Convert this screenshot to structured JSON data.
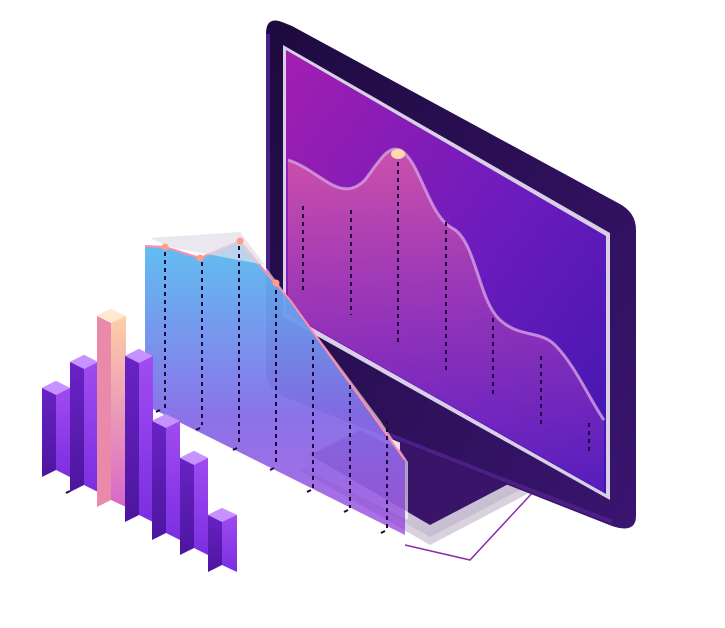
{
  "illustration": {
    "subject": "isometric-analytics-monitor",
    "colors": {
      "background": "#ffffff",
      "frame_dark": "#2a0f52",
      "frame_edge": "#4b1f86",
      "screen_top": "#9b1fb3",
      "screen_bottom": "#4c18b5",
      "accent_purple": "#8b3ff0",
      "accent_peach": "#ffd9b0",
      "panel_cyan": "#5ec3ee"
    },
    "icons": [
      "monitor-icon",
      "area-chart-icon",
      "bar-chart-icon"
    ]
  }
}
